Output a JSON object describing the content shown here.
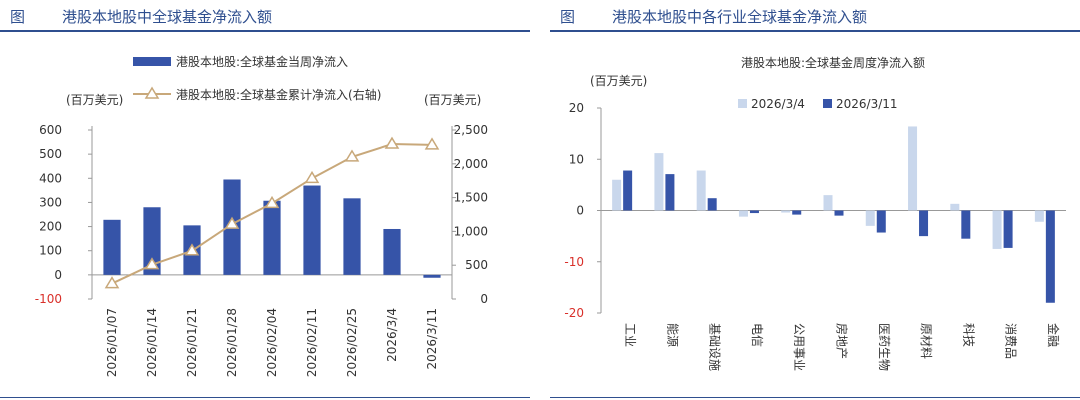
{
  "panels": [
    {
      "fig_label": "图",
      "title": "港股本地股中全球基金净流入额"
    },
    {
      "fig_label": "图",
      "title": "港股本地股中各行业全球基金净流入额"
    }
  ],
  "chart_data": [
    {
      "type": "bar",
      "categories": [
        "2026/01/07",
        "2026/01/14",
        "2026/01/21",
        "2026/01/28",
        "2026/02/04",
        "2026/02/11",
        "2026/02/25",
        "2026/3/4",
        "2026/3/11"
      ],
      "series": [
        {
          "name": "港股本地股:全球基金当周净流入",
          "type": "bar",
          "axis": "left",
          "values": [
            228,
            280,
            205,
            395,
            307,
            370,
            317,
            190,
            -12
          ],
          "color": "#3654a8"
        },
        {
          "name": "港股本地股:全球基金累计净流入(右轴)",
          "type": "line",
          "axis": "right",
          "values": [
            228,
            508,
            713,
            1108,
            1415,
            1785,
            2102,
            2292,
            2280
          ],
          "color": "#c8a87a"
        }
      ],
      "ylabel_left": "(百万美元)",
      "ylabel_right": "(百万美元)",
      "ylim_left": [
        -100,
        600
      ],
      "yticks_left": [
        "600",
        "500",
        "400",
        "300",
        "200",
        "100",
        "0",
        "-100"
      ],
      "ylim_right": [
        0,
        2500
      ],
      "yticks_right": [
        "2,500",
        "2,000",
        "1,500",
        "1,000",
        "500",
        "0"
      ],
      "legend_placement": "top-center",
      "grid": false
    },
    {
      "type": "bar",
      "title": "港股本地股:全球基金周度净流入额",
      "categories": [
        "工业",
        "能源",
        "基础设施",
        "电信",
        "公用事业",
        "房地产",
        "医药生物",
        "原材料",
        "科技",
        "消费品",
        "金融"
      ],
      "series": [
        {
          "name": "2026/3/4",
          "values": [
            6,
            11.2,
            7.8,
            -1.2,
            -0.4,
            3,
            -3,
            16.4,
            1.3,
            -7.5,
            -2.2
          ],
          "color": "#c9d7ec"
        },
        {
          "name": "2026/3/11",
          "values": [
            7.8,
            7.1,
            2.4,
            -0.5,
            -0.8,
            -1,
            -4.3,
            -5,
            -5.5,
            -7.3,
            -18
          ],
          "color": "#3654a8"
        }
      ],
      "ylabel": "(百万美元)",
      "ylim": [
        -20,
        20
      ],
      "yticks": [
        "20",
        "10",
        "0",
        "-10",
        "-20"
      ],
      "legend_placement": "top-center",
      "grid": false
    }
  ]
}
